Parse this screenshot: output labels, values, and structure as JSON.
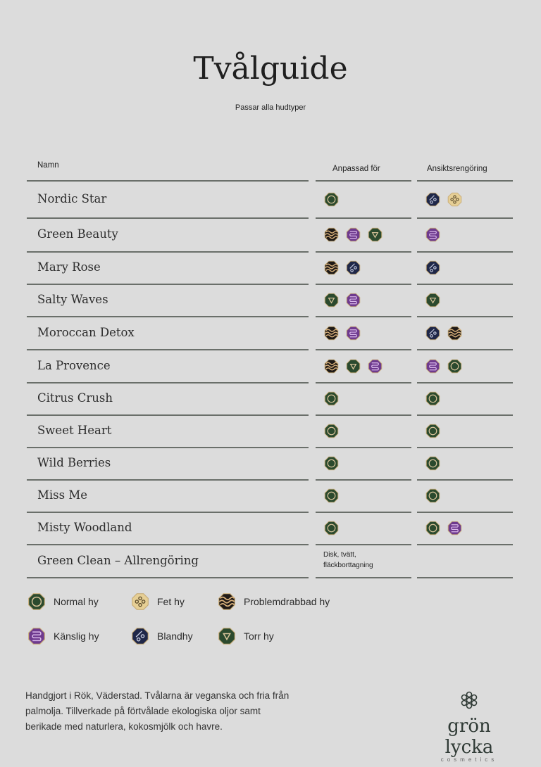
{
  "title": "Tvålguide",
  "subtitle": "Passar alla hudtyper",
  "headers": {
    "name": "Namn",
    "suited": "Anpassad för",
    "face": "Ansiktsrengöring"
  },
  "colors": {
    "normal": "#2b4a2e",
    "fet": "#e6cf95",
    "problem": "#1f1a17",
    "kanslig": "#6e3a8e",
    "bland": "#1f2748",
    "torr": "#2b4a2e",
    "rim": "#c8ad7a"
  },
  "rows": [
    {
      "name": "Nordic Star",
      "suited": [
        "normal"
      ],
      "face": [
        "bland",
        "fet"
      ]
    },
    {
      "name": "Green Beauty",
      "suited": [
        "problem",
        "kanslig",
        "torr"
      ],
      "face": [
        "kanslig"
      ]
    },
    {
      "name": "Mary Rose",
      "suited": [
        "problem",
        "bland"
      ],
      "face": [
        "bland"
      ]
    },
    {
      "name": "Salty Waves",
      "suited": [
        "torr",
        "kanslig"
      ],
      "face": [
        "torr"
      ]
    },
    {
      "name": "Moroccan Detox",
      "suited": [
        "problem",
        "kanslig"
      ],
      "face": [
        "bland",
        "problem"
      ]
    },
    {
      "name": "La Provence",
      "suited": [
        "problem",
        "torr",
        "kanslig"
      ],
      "face": [
        "kanslig",
        "normal"
      ]
    },
    {
      "name": "Citrus Crush",
      "suited": [
        "normal"
      ],
      "face": [
        "normal"
      ]
    },
    {
      "name": "Sweet Heart",
      "suited": [
        "normal"
      ],
      "face": [
        "normal"
      ]
    },
    {
      "name": "Wild Berries",
      "suited": [
        "normal"
      ],
      "face": [
        "normal"
      ]
    },
    {
      "name": "Miss Me",
      "suited": [
        "normal"
      ],
      "face": [
        "normal"
      ]
    },
    {
      "name": "Misty Woodland",
      "suited": [
        "normal"
      ],
      "face": [
        "normal",
        "kanslig"
      ]
    },
    {
      "name": "Green Clean – Allrengöring",
      "suited_text": "Disk, tvätt, fläckborttagning",
      "suited": [],
      "face": []
    }
  ],
  "legend": [
    {
      "key": "normal",
      "label": "Normal hy"
    },
    {
      "key": "fet",
      "label": "Fet hy"
    },
    {
      "key": "problem",
      "label": "Problemdrabbad hy"
    },
    {
      "key": "kanslig",
      "label": "Känslig hy"
    },
    {
      "key": "bland",
      "label": "Blandhy"
    },
    {
      "key": "torr",
      "label": "Torr hy"
    }
  ],
  "footer": "Handgjort i Rök, Väderstad. Tvålarna är veganska och fria från palmolja. Tillverkade på förtvålade ekologiska oljor samt berikade med naturlera, kokosmjölk och havre.",
  "logo": {
    "brand": "grön lycka",
    "sub": "cosmetics"
  }
}
